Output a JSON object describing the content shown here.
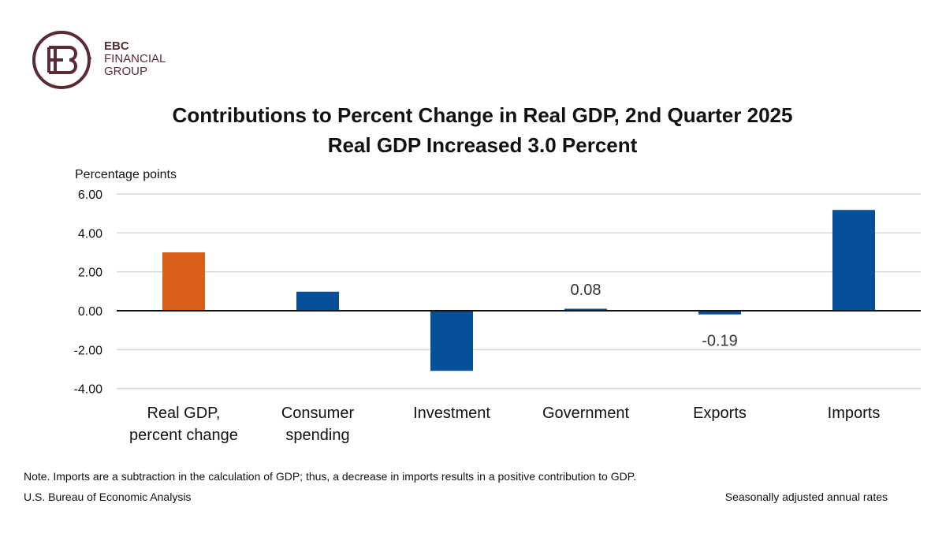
{
  "logo": {
    "line1": "EBC",
    "line2": "FINANCIAL",
    "line3": "GROUP",
    "mark": "EBC",
    "color": "#5a2a35"
  },
  "chart_data": {
    "type": "bar",
    "title": "Contributions to Percent Change in Real GDP, 2nd Quarter 2025",
    "subtitle": "Real GDP Increased 3.0 Percent",
    "ylabel": "Percentage points",
    "xlabel": "",
    "ylim": [
      -4,
      6
    ],
    "yticks": [
      6,
      4,
      2,
      0,
      -2,
      -4
    ],
    "ytick_labels": [
      "6.00",
      "4.00",
      "2.00",
      "0.00",
      "-2.00",
      "-4.00"
    ],
    "grid": true,
    "categories": [
      [
        "Real GDP,",
        "percent change"
      ],
      [
        "Consumer",
        "spending"
      ],
      [
        "Investment"
      ],
      [
        "Government"
      ],
      [
        "Exports"
      ],
      [
        "Imports"
      ]
    ],
    "values": [
      3.0,
      0.98,
      -3.09,
      0.08,
      -0.19,
      5.18
    ],
    "colors": [
      "#d9601a",
      "#074f99",
      "#074f99",
      "#074f99",
      "#074f99",
      "#074f99"
    ],
    "data_labels": [
      "",
      "",
      "",
      "0.08",
      "-0.19",
      ""
    ]
  },
  "footer": {
    "note": "Note. Imports are a subtraction in the calculation of GDP; thus, a decrease in imports results in a positive contribution to GDP.",
    "source": "U.S. Bureau of Economic Analysis",
    "basis": "Seasonally adjusted annual rates"
  }
}
